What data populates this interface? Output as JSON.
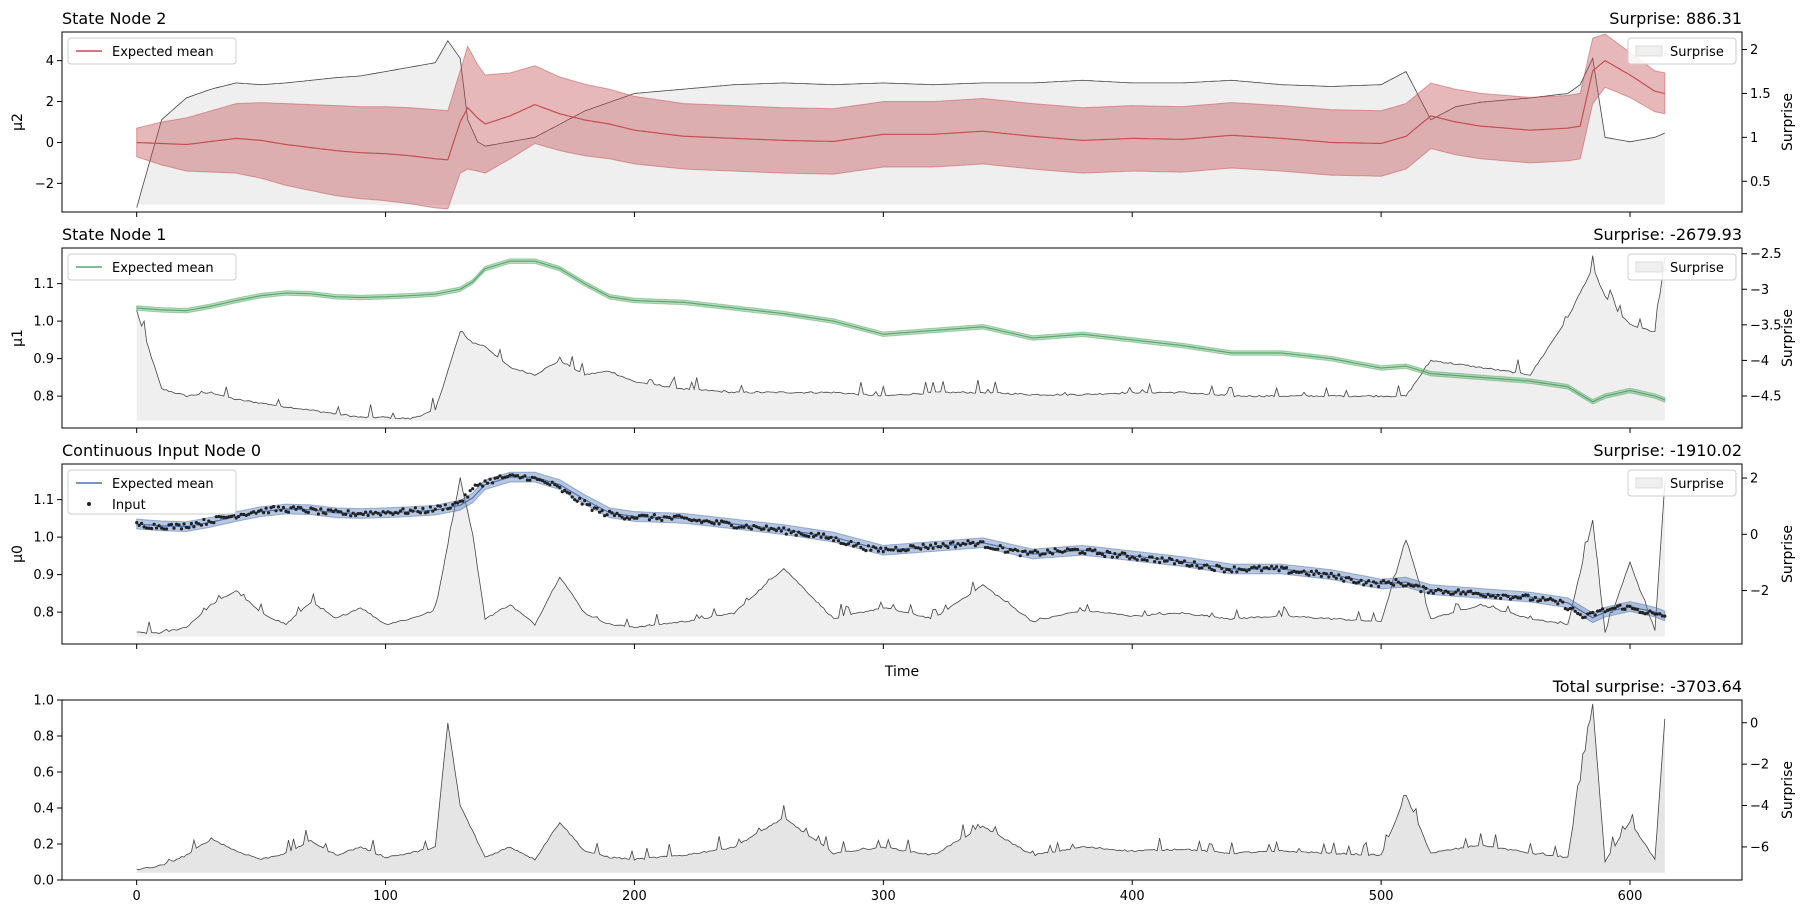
{
  "chart_data": [
    {
      "type": "line",
      "title": "State Node 2",
      "title_right": "Surprise: 886.31",
      "ylabel": "μ2",
      "ylim": [
        -3.4,
        5.4
      ],
      "yticks": [
        -2,
        0,
        2,
        4
      ],
      "right_ylabel": "Surprise",
      "right_ylim": [
        0.15,
        2.2
      ],
      "right_yticks": [
        0.5,
        1.0,
        1.5,
        2.0
      ],
      "xlim": [
        -30,
        645
      ],
      "xticks": [
        0,
        100,
        200,
        300,
        400,
        500,
        600
      ],
      "show_xticklabels": false,
      "legend_left": "Expected mean",
      "legend_right": "Surprise",
      "color": "#c44e52",
      "band_color": "#c44e52",
      "x": [
        0,
        10,
        20,
        30,
        40,
        50,
        60,
        70,
        80,
        90,
        100,
        110,
        120,
        125,
        130,
        133,
        137,
        140,
        150,
        160,
        170,
        180,
        190,
        200,
        220,
        240,
        260,
        280,
        300,
        320,
        340,
        360,
        380,
        400,
        420,
        440,
        460,
        480,
        500,
        510,
        520,
        530,
        540,
        560,
        575,
        580,
        585,
        590,
        600,
        610,
        614
      ],
      "mean": [
        0.0,
        -0.05,
        -0.1,
        0.05,
        0.2,
        0.1,
        -0.1,
        -0.25,
        -0.4,
        -0.5,
        -0.55,
        -0.65,
        -0.8,
        -0.85,
        1.0,
        1.7,
        1.2,
        0.9,
        1.3,
        1.85,
        1.4,
        1.1,
        0.9,
        0.6,
        0.3,
        0.2,
        0.1,
        0.05,
        0.4,
        0.4,
        0.55,
        0.3,
        0.1,
        0.2,
        0.15,
        0.35,
        0.2,
        0.0,
        -0.05,
        0.3,
        1.3,
        1.0,
        0.8,
        0.6,
        0.7,
        0.8,
        3.5,
        4.0,
        3.3,
        2.5,
        2.4
      ],
      "band_halfwidth": [
        0.7,
        1.05,
        1.3,
        1.5,
        1.7,
        1.85,
        2.0,
        2.1,
        2.2,
        2.25,
        2.3,
        2.35,
        2.4,
        2.4,
        2.5,
        3.0,
        2.6,
        2.4,
        2.1,
        1.9,
        1.8,
        1.75,
        1.7,
        1.65,
        1.6,
        1.6,
        1.6,
        1.6,
        1.6,
        1.6,
        1.6,
        1.6,
        1.6,
        1.6,
        1.6,
        1.6,
        1.6,
        1.6,
        1.6,
        1.6,
        1.6,
        1.6,
        1.6,
        1.6,
        1.6,
        1.6,
        1.6,
        1.3,
        1.1,
        1.0,
        1.0
      ],
      "surprise": [
        0.2,
        1.2,
        1.45,
        1.55,
        1.62,
        1.6,
        1.62,
        1.65,
        1.68,
        1.7,
        1.75,
        1.8,
        1.85,
        2.1,
        1.9,
        1.2,
        0.95,
        0.9,
        0.95,
        1.0,
        1.15,
        1.3,
        1.4,
        1.5,
        1.55,
        1.6,
        1.62,
        1.6,
        1.62,
        1.6,
        1.62,
        1.62,
        1.65,
        1.62,
        1.62,
        1.65,
        1.6,
        1.58,
        1.6,
        1.75,
        1.2,
        1.35,
        1.4,
        1.45,
        1.5,
        1.6,
        1.9,
        1.0,
        0.95,
        1.0,
        1.05
      ]
    },
    {
      "type": "line",
      "title": "State Node 1",
      "title_right": "Surprise: -2679.93",
      "ylabel": "μ1",
      "ylim": [
        0.715,
        1.195
      ],
      "yticks": [
        0.8,
        0.9,
        1.0,
        1.1
      ],
      "right_ylabel": "Surprise",
      "right_ylim": [
        -4.95,
        -2.42
      ],
      "right_yticks": [
        -4.5,
        -4.0,
        -3.5,
        -3.0,
        -2.5
      ],
      "xlim": [
        -30,
        645
      ],
      "xticks": [
        0,
        100,
        200,
        300,
        400,
        500,
        600
      ],
      "show_xticklabels": false,
      "legend_left": "Expected mean",
      "legend_right": "Surprise",
      "color": "#55a868",
      "band_color": "#55a868",
      "x": [
        0,
        10,
        20,
        30,
        40,
        50,
        60,
        70,
        80,
        90,
        100,
        110,
        120,
        130,
        135,
        140,
        150,
        160,
        170,
        180,
        190,
        200,
        220,
        240,
        260,
        280,
        300,
        320,
        340,
        360,
        380,
        400,
        420,
        440,
        460,
        480,
        500,
        510,
        520,
        540,
        560,
        575,
        585,
        590,
        600,
        610,
        614
      ],
      "mean": [
        1.035,
        1.03,
        1.028,
        1.04,
        1.055,
        1.068,
        1.075,
        1.073,
        1.065,
        1.063,
        1.065,
        1.068,
        1.072,
        1.085,
        1.105,
        1.14,
        1.16,
        1.16,
        1.14,
        1.1,
        1.065,
        1.055,
        1.05,
        1.035,
        1.02,
        1.0,
        0.965,
        0.975,
        0.985,
        0.955,
        0.965,
        0.95,
        0.935,
        0.915,
        0.915,
        0.9,
        0.875,
        0.88,
        0.86,
        0.85,
        0.84,
        0.825,
        0.785,
        0.8,
        0.815,
        0.8,
        0.79
      ],
      "band_halfwidth": 0.006,
      "surprise": [
        -3.3,
        -4.4,
        -4.5,
        -4.45,
        -4.55,
        -4.6,
        -4.65,
        -4.7,
        -4.75,
        -4.8,
        -4.8,
        -4.82,
        -4.7,
        -3.6,
        -3.75,
        -3.8,
        -4.1,
        -4.2,
        -4.0,
        -4.2,
        -4.15,
        -4.3,
        -4.4,
        -4.45,
        -4.45,
        -4.45,
        -4.5,
        -4.45,
        -4.45,
        -4.48,
        -4.48,
        -4.45,
        -4.45,
        -4.5,
        -4.5,
        -4.5,
        -4.5,
        -4.5,
        -4.0,
        -4.1,
        -4.2,
        -3.4,
        -2.7,
        -3.1,
        -3.5,
        -3.6,
        -2.55
      ]
    },
    {
      "type": "line",
      "title": "Continuous Input Node 0",
      "title_right": "Surprise: -1910.02",
      "ylabel": "μ0",
      "ylim": [
        0.715,
        1.195
      ],
      "yticks": [
        0.8,
        0.9,
        1.0,
        1.1
      ],
      "right_ylabel": "Surprise",
      "right_ylim": [
        -3.9,
        2.5
      ],
      "right_yticks": [
        -2,
        0,
        2
      ],
      "xlim": [
        -30,
        645
      ],
      "xticks": [
        0,
        100,
        200,
        300,
        400,
        500,
        600
      ],
      "show_xticklabels": false,
      "xlabel": "Time",
      "legend_left": "Expected mean",
      "legend_input": "Input",
      "legend_right": "Surprise",
      "color": "#4c72b0",
      "band_color": "#4c72b0",
      "x": [
        0,
        10,
        20,
        30,
        40,
        50,
        60,
        70,
        80,
        90,
        100,
        110,
        120,
        130,
        135,
        140,
        150,
        160,
        170,
        180,
        190,
        200,
        220,
        240,
        260,
        280,
        300,
        320,
        340,
        360,
        380,
        400,
        420,
        440,
        460,
        480,
        500,
        510,
        520,
        540,
        560,
        575,
        585,
        590,
        600,
        610,
        614
      ],
      "mean": [
        1.035,
        1.03,
        1.028,
        1.04,
        1.055,
        1.068,
        1.075,
        1.073,
        1.065,
        1.063,
        1.065,
        1.068,
        1.072,
        1.085,
        1.105,
        1.14,
        1.16,
        1.16,
        1.14,
        1.1,
        1.065,
        1.055,
        1.05,
        1.035,
        1.02,
        1.0,
        0.965,
        0.975,
        0.985,
        0.955,
        0.965,
        0.95,
        0.935,
        0.915,
        0.915,
        0.9,
        0.875,
        0.88,
        0.86,
        0.85,
        0.84,
        0.825,
        0.785,
        0.8,
        0.815,
        0.8,
        0.79
      ],
      "band_halfwidth": 0.013,
      "input_noise": 0.008,
      "input_count": 615,
      "surprise": [
        -3.5,
        -3.5,
        -3.3,
        -2.5,
        -2.0,
        -2.8,
        -3.2,
        -2.4,
        -3.0,
        -2.6,
        -3.2,
        -3.0,
        -2.7,
        2.0,
        0.0,
        -3.0,
        -2.5,
        -3.2,
        -1.5,
        -2.8,
        -3.2,
        -3.3,
        -3.1,
        -2.8,
        -1.2,
        -3.0,
        -2.6,
        -3.0,
        -1.8,
        -3.1,
        -2.7,
        -2.9,
        -2.8,
        -3.0,
        -2.9,
        -3.0,
        -3.1,
        -0.2,
        -3.0,
        -2.5,
        -3.0,
        -3.2,
        0.5,
        -3.5,
        -1.0,
        -3.4,
        1.8
      ]
    },
    {
      "type": "area",
      "title": "",
      "title_right": "Total surprise: -3703.64",
      "ylabel": "",
      "ylim": [
        0.0,
        1.0
      ],
      "yticks": [
        0.0,
        0.2,
        0.4,
        0.6,
        0.8,
        1.0
      ],
      "right_ylabel": "Surprise",
      "right_ylim": [
        -7.6,
        1.1
      ],
      "right_yticks": [
        -6,
        -4,
        -2,
        0
      ],
      "xlim": [
        -30,
        645
      ],
      "xticks": [
        0,
        100,
        200,
        300,
        400,
        500,
        600
      ],
      "show_xticklabels": true,
      "color": "#e5e5e5",
      "x": [
        0,
        10,
        20,
        30,
        40,
        50,
        60,
        70,
        80,
        90,
        100,
        110,
        120,
        125,
        130,
        140,
        150,
        160,
        170,
        180,
        190,
        200,
        220,
        240,
        260,
        280,
        300,
        320,
        340,
        360,
        380,
        400,
        420,
        440,
        460,
        480,
        500,
        510,
        520,
        540,
        560,
        575,
        585,
        590,
        600,
        610,
        614
      ],
      "surprise": [
        -7.1,
        -6.9,
        -6.4,
        -5.6,
        -6.2,
        -6.6,
        -6.3,
        -5.7,
        -6.4,
        -6.0,
        -6.5,
        -6.3,
        -6.0,
        0.0,
        -4.0,
        -6.5,
        -6.0,
        -6.6,
        -4.8,
        -6.2,
        -6.5,
        -6.6,
        -6.4,
        -6.0,
        -4.6,
        -6.3,
        -6.0,
        -6.4,
        -5.0,
        -6.4,
        -6.0,
        -6.2,
        -6.1,
        -6.3,
        -6.2,
        -6.3,
        -6.4,
        -3.5,
        -6.3,
        -5.9,
        -6.3,
        -6.5,
        0.9,
        -6.7,
        -4.8,
        -6.6,
        0.2
      ]
    }
  ]
}
